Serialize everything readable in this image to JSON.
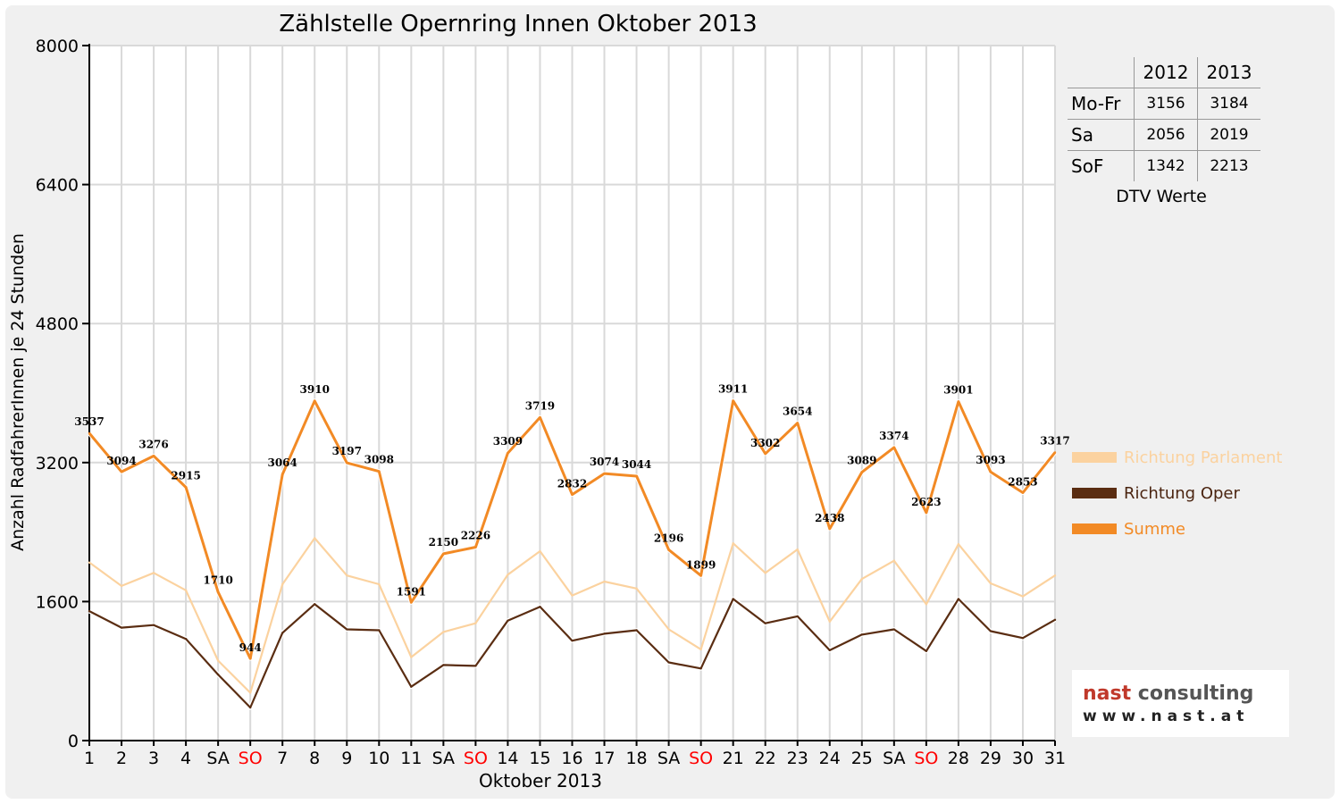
{
  "chart_data": {
    "type": "line",
    "title": "Zählstelle Opernring Innen Oktober 2013",
    "xlabel": "Oktober 2013",
    "ylabel": "Anzahl RadfahrerInnen je 24 Stunden",
    "ylim": [
      0,
      8000
    ],
    "yticks": [
      "0",
      "1600",
      "3200",
      "4800",
      "6400",
      "8000"
    ],
    "ytick_values": [
      0,
      1600,
      3200,
      4800,
      6400,
      8000
    ],
    "grid": true,
    "legend_position": "right",
    "categories": [
      "1",
      "2",
      "3",
      "4",
      "SA",
      "SO",
      "7",
      "8",
      "9",
      "10",
      "11",
      "SA",
      "SO",
      "14",
      "15",
      "16",
      "17",
      "18",
      "SA",
      "SO",
      "21",
      "22",
      "23",
      "24",
      "25",
      "SA",
      "SO",
      "28",
      "29",
      "30",
      "31"
    ],
    "weekend_color": "#ff0000",
    "series": [
      {
        "name": "Richtung Parlament",
        "color": "#fbd29f",
        "values": [
          2050,
          1780,
          1930,
          1730,
          920,
          550,
          1800,
          2330,
          1900,
          1800,
          960,
          1250,
          1350,
          1910,
          2180,
          1670,
          1830,
          1750,
          1280,
          1050,
          2270,
          1930,
          2200,
          1370,
          1860,
          2070,
          1570,
          2260,
          1810,
          1660,
          1900
        ]
      },
      {
        "name": "Richtung Oper",
        "color": "#5a2d12",
        "values": [
          1490,
          1300,
          1330,
          1170,
          760,
          380,
          1240,
          1570,
          1280,
          1270,
          620,
          870,
          860,
          1380,
          1540,
          1150,
          1230,
          1270,
          900,
          830,
          1630,
          1350,
          1430,
          1040,
          1220,
          1280,
          1030,
          1630,
          1260,
          1180,
          1390
        ]
      },
      {
        "name": "Summe",
        "color": "#f28a25",
        "values": [
          3537,
          3094,
          3276,
          2915,
          1710,
          944,
          3064,
          3910,
          3197,
          3098,
          1591,
          2150,
          2226,
          3309,
          3719,
          2832,
          3074,
          3044,
          2196,
          1899,
          3911,
          3302,
          3654,
          2438,
          3089,
          3374,
          2623,
          3901,
          3093,
          2853,
          3317
        ]
      }
    ]
  },
  "dtv": {
    "headers": [
      "2012",
      "2013"
    ],
    "rows": [
      {
        "label": "Mo-Fr",
        "v2012": "3156",
        "v2013": "3184"
      },
      {
        "label": "Sa",
        "v2012": "2056",
        "v2013": "2019"
      },
      {
        "label": "SoF",
        "v2012": "1342",
        "v2013": "2213"
      }
    ],
    "caption": "DTV Werte"
  },
  "logo": {
    "brand_part1": "nast",
    "brand_part2": " consulting",
    "url": "www.nast.at",
    "color1": "#c0392b",
    "color2": "#555555"
  }
}
